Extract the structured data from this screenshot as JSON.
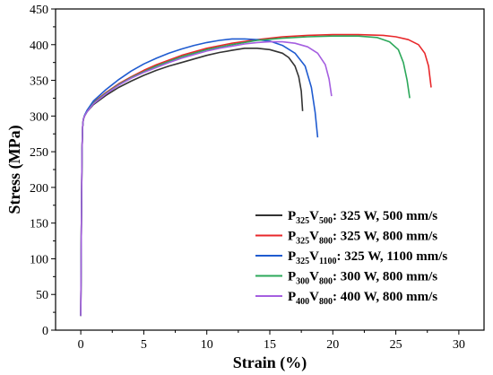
{
  "chart_data": {
    "type": "line",
    "xlabel": "Strain (%)",
    "ylabel": "Stress (MPa)",
    "xlim": [
      -2,
      32
    ],
    "ylim": [
      0,
      450
    ],
    "xticks": [
      0,
      5,
      10,
      15,
      20,
      25,
      30
    ],
    "yticks": [
      0,
      50,
      100,
      150,
      200,
      250,
      300,
      350,
      400,
      450
    ],
    "grid": false,
    "legend_position": "bottom-right",
    "series": [
      {
        "name_parts": [
          [
            "P",
            false
          ],
          [
            "325",
            true
          ],
          [
            "V",
            false
          ],
          [
            "500",
            true
          ],
          [
            ": 325 W, 500 mm/s",
            false
          ]
        ],
        "color": "#333333",
        "x": [
          0.0,
          0.05,
          0.1,
          0.15,
          0.2,
          0.3,
          0.5,
          1,
          2,
          3,
          4,
          5,
          6,
          7,
          8,
          9,
          10,
          11,
          12,
          13,
          14,
          15,
          16,
          16.5,
          17,
          17.3,
          17.5,
          17.6
        ],
        "y": [
          20,
          150,
          250,
          285,
          295,
          300,
          306,
          316,
          329,
          340,
          349,
          357,
          364,
          370,
          375,
          380,
          385,
          389,
          392,
          395,
          395,
          393,
          388,
          382,
          370,
          355,
          335,
          307
        ]
      },
      {
        "name_parts": [
          [
            "P",
            false
          ],
          [
            "325",
            true
          ],
          [
            "V",
            false
          ],
          [
            "800",
            true
          ],
          [
            ": 325 W, 800 mm/s",
            false
          ]
        ],
        "color": "#e8282b",
        "x": [
          0.0,
          0.05,
          0.1,
          0.15,
          0.2,
          0.3,
          0.5,
          1,
          2,
          3,
          4,
          5,
          6,
          8,
          10,
          12,
          14,
          16,
          18,
          20,
          22,
          24,
          25,
          26,
          26.8,
          27.3,
          27.6,
          27.8
        ],
        "y": [
          20,
          150,
          250,
          285,
          295,
          300,
          307,
          319,
          333,
          345,
          355,
          364,
          372,
          385,
          395,
          402,
          407,
          411,
          413,
          414,
          414,
          413,
          411,
          407,
          400,
          388,
          370,
          340
        ]
      },
      {
        "name_parts": [
          [
            "P",
            false
          ],
          [
            "325",
            true
          ],
          [
            "V",
            false
          ],
          [
            "1100",
            true
          ],
          [
            ": 325 W, 1100 mm/s",
            false
          ]
        ],
        "color": "#1f5bd0",
        "x": [
          0.0,
          0.05,
          0.1,
          0.15,
          0.2,
          0.3,
          0.5,
          1,
          2,
          3,
          4,
          5,
          6,
          7,
          8,
          9,
          10,
          11,
          12,
          13,
          14,
          15,
          16,
          17,
          17.8,
          18.3,
          18.6,
          18.8
        ],
        "y": [
          20,
          150,
          250,
          285,
          295,
          301,
          308,
          321,
          337,
          351,
          363,
          373,
          381,
          388,
          394,
          399,
          403,
          406,
          408,
          408,
          407,
          405,
          399,
          388,
          370,
          340,
          305,
          270
        ]
      },
      {
        "name_parts": [
          [
            "P",
            false
          ],
          [
            "300",
            true
          ],
          [
            "V",
            false
          ],
          [
            "800",
            true
          ],
          [
            ": 300 W, 800 mm/s",
            false
          ]
        ],
        "color": "#2ca85a",
        "x": [
          0.0,
          0.05,
          0.1,
          0.15,
          0.2,
          0.3,
          0.5,
          1,
          2,
          3,
          4,
          5,
          6,
          8,
          10,
          12,
          14,
          16,
          18,
          20,
          22,
          23.5,
          24.5,
          25.2,
          25.6,
          25.9,
          26.1
        ],
        "y": [
          20,
          150,
          250,
          285,
          295,
          300,
          306,
          318,
          332,
          344,
          354,
          362,
          370,
          383,
          393,
          400,
          406,
          409,
          411,
          412,
          412,
          410,
          404,
          393,
          375,
          350,
          325
        ]
      },
      {
        "name_parts": [
          [
            "P",
            false
          ],
          [
            "400",
            true
          ],
          [
            "V",
            false
          ],
          [
            "800",
            true
          ],
          [
            ": 400 W, 800 mm/s",
            false
          ]
        ],
        "color": "#a55fe0",
        "x": [
          0.0,
          0.05,
          0.1,
          0.15,
          0.2,
          0.3,
          0.5,
          1,
          2,
          3,
          4,
          5,
          6,
          7,
          8,
          9,
          10,
          11,
          12,
          13,
          14,
          15,
          16,
          17,
          18,
          18.8,
          19.4,
          19.7,
          19.9
        ],
        "y": [
          20,
          150,
          250,
          285,
          295,
          300,
          306,
          317,
          331,
          343,
          353,
          361,
          368,
          375,
          381,
          386,
          391,
          395,
          398,
          401,
          403,
          404,
          404,
          402,
          397,
          388,
          372,
          352,
          328
        ]
      }
    ]
  }
}
